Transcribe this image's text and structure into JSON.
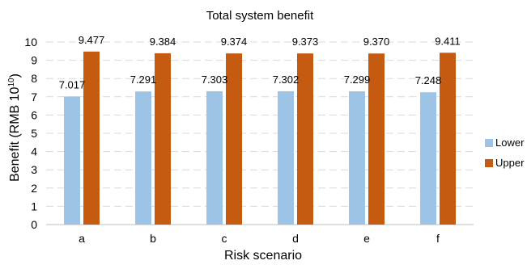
{
  "chart_data": {
    "type": "bar",
    "title": "Total system benefit",
    "xlabel": "Risk scenario",
    "ylabel_main": "Benefit (RMB 10",
    "ylabel_sup": "10",
    "ylabel_end": ")",
    "categories": [
      "a",
      "b",
      "c",
      "d",
      "e",
      "f"
    ],
    "ylim": [
      0,
      10
    ],
    "yticks": [
      0,
      1,
      2,
      3,
      4,
      5,
      6,
      7,
      8,
      9,
      10
    ],
    "grid": true,
    "legend_position": "right",
    "series": [
      {
        "name": "Lower",
        "color": "#9dc3e6",
        "values": [
          7.017,
          7.291,
          7.303,
          7.302,
          7.299,
          7.248
        ],
        "labels": [
          "7.017",
          "7.291",
          "7.303",
          "7.302",
          "7.299",
          "7.248"
        ]
      },
      {
        "name": "Upper",
        "color": "#c55a11",
        "values": [
          9.477,
          9.384,
          9.374,
          9.373,
          9.37,
          9.411
        ],
        "labels": [
          "9.477",
          "9.384",
          "9.374",
          "9.373",
          "9.370",
          "9.411"
        ]
      }
    ]
  }
}
